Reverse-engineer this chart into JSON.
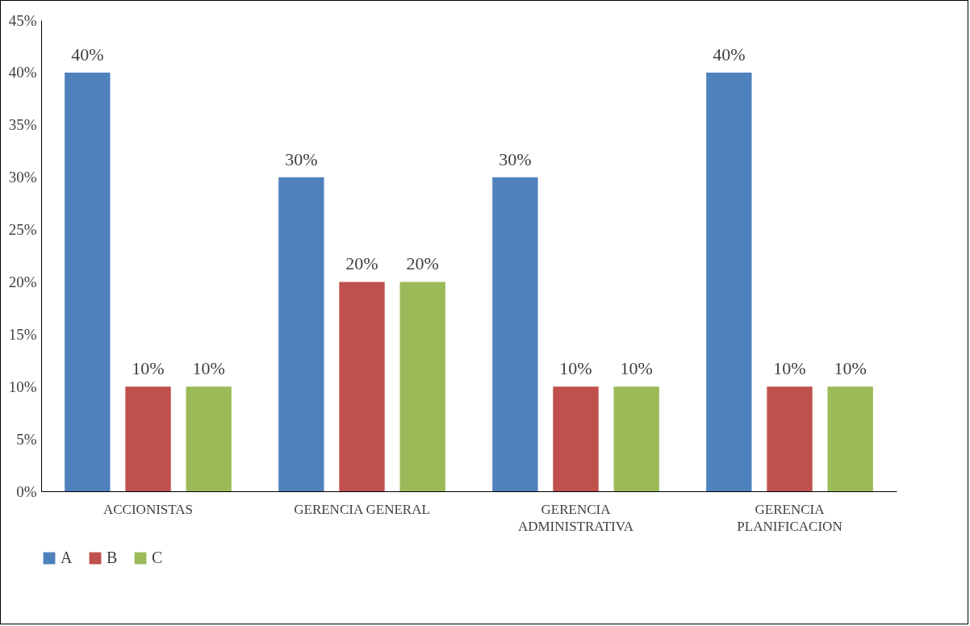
{
  "chart_data": {
    "type": "bar",
    "categories": [
      "ACCIONISTAS",
      "GERENCIA GENERAL",
      "GERENCIA ADMINISTRATIVA",
      "GERENCIA PLANIFICACION"
    ],
    "series": [
      {
        "name": "A",
        "color": "#4f81bd",
        "values": [
          40,
          30,
          30,
          40
        ],
        "value_labels": [
          "40%",
          "30%",
          "30%",
          "40%"
        ]
      },
      {
        "name": "B",
        "color": "#c0504d",
        "values": [
          10,
          20,
          10,
          10
        ],
        "value_labels": [
          "10%",
          "20%",
          "10%",
          "10%"
        ]
      },
      {
        "name": "C",
        "color": "#9bbb59",
        "values": [
          10,
          20,
          10,
          10
        ],
        "value_labels": [
          "10%",
          "20%",
          "10%",
          "10%"
        ]
      }
    ],
    "ylim": [
      0,
      45
    ],
    "yticks": [
      {
        "value": 0,
        "label": "0%"
      },
      {
        "value": 5,
        "label": "5%"
      },
      {
        "value": 10,
        "label": "10%"
      },
      {
        "value": 15,
        "label": "15%"
      },
      {
        "value": 20,
        "label": "20%"
      },
      {
        "value": 25,
        "label": "25%"
      },
      {
        "value": 30,
        "label": "30%"
      },
      {
        "value": 35,
        "label": "35%"
      },
      {
        "value": 40,
        "label": "40%"
      },
      {
        "value": 45,
        "label": "45%"
      }
    ],
    "grid": false,
    "legend": "bottom"
  }
}
